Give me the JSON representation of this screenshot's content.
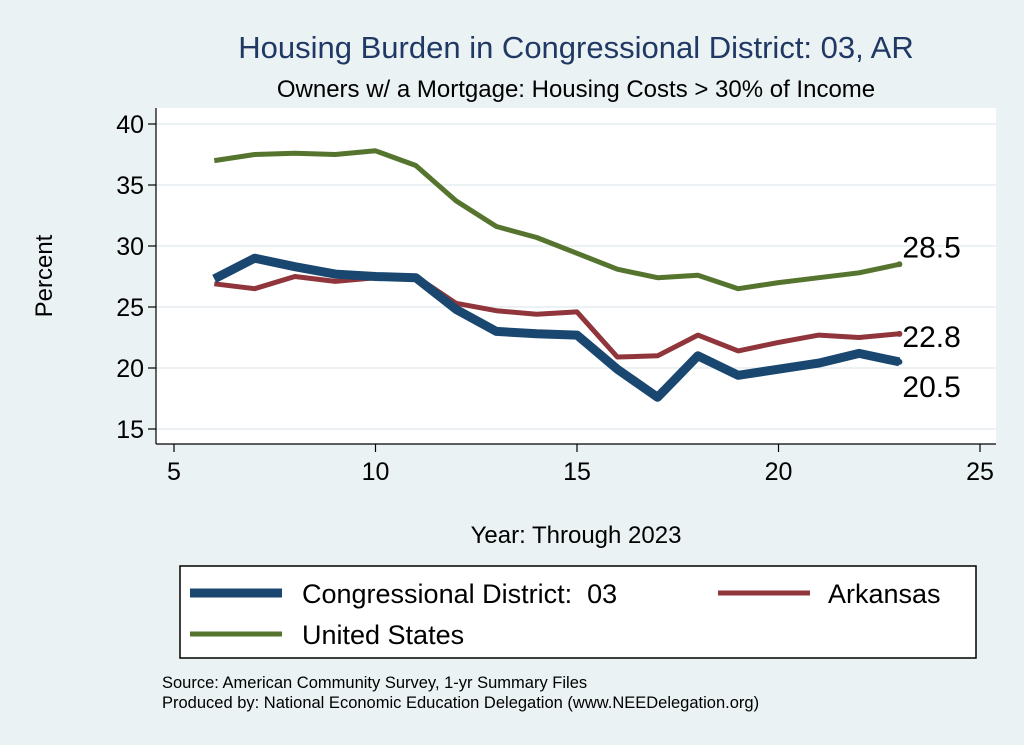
{
  "chart_data": {
    "type": "line",
    "title": "Housing Burden in Congressional District:  03, AR",
    "subtitle": "Owners w/ a Mortgage: Housing Costs > 30% of Income",
    "xlabel": "Year: Through 2023",
    "ylabel": "Percent",
    "xlim": [
      5,
      25
    ],
    "ylim": [
      15,
      40
    ],
    "xticks": [
      5,
      10,
      15,
      20,
      25
    ],
    "yticks": [
      15,
      20,
      25,
      30,
      35,
      40
    ],
    "grid": true,
    "legend_position": "bottom",
    "x": [
      6,
      7,
      8,
      9,
      10,
      11,
      12,
      13,
      14,
      15,
      16,
      17,
      18,
      19,
      20,
      21,
      22,
      23
    ],
    "series": [
      {
        "name": "Congressional District:  03",
        "color": "#1a476f",
        "values": [
          27.3,
          29.0,
          28.3,
          27.7,
          27.5,
          27.4,
          24.8,
          23.0,
          22.8,
          22.7,
          19.9,
          17.6,
          21.0,
          19.4,
          19.9,
          20.4,
          21.2,
          20.5
        ],
        "end_label": "20.5"
      },
      {
        "name": "Arkansas",
        "color": "#90353b",
        "values": [
          26.9,
          26.5,
          27.5,
          27.1,
          27.4,
          27.5,
          25.3,
          24.7,
          24.4,
          24.6,
          20.9,
          21.0,
          22.7,
          21.4,
          22.1,
          22.7,
          22.5,
          22.8
        ],
        "end_label": "22.8"
      },
      {
        "name": "United States",
        "color": "#55752f",
        "values": [
          37.0,
          37.5,
          37.6,
          37.5,
          37.8,
          36.6,
          33.7,
          31.6,
          30.7,
          29.4,
          28.1,
          27.4,
          27.6,
          26.5,
          27.0,
          27.4,
          27.8,
          28.5
        ],
        "end_label": "28.5"
      }
    ],
    "notes": [
      "Source: American Community Survey, 1-yr Summary Files",
      "Produced by: National Economic Education Delegation (www.NEEDelegation.org)"
    ]
  }
}
